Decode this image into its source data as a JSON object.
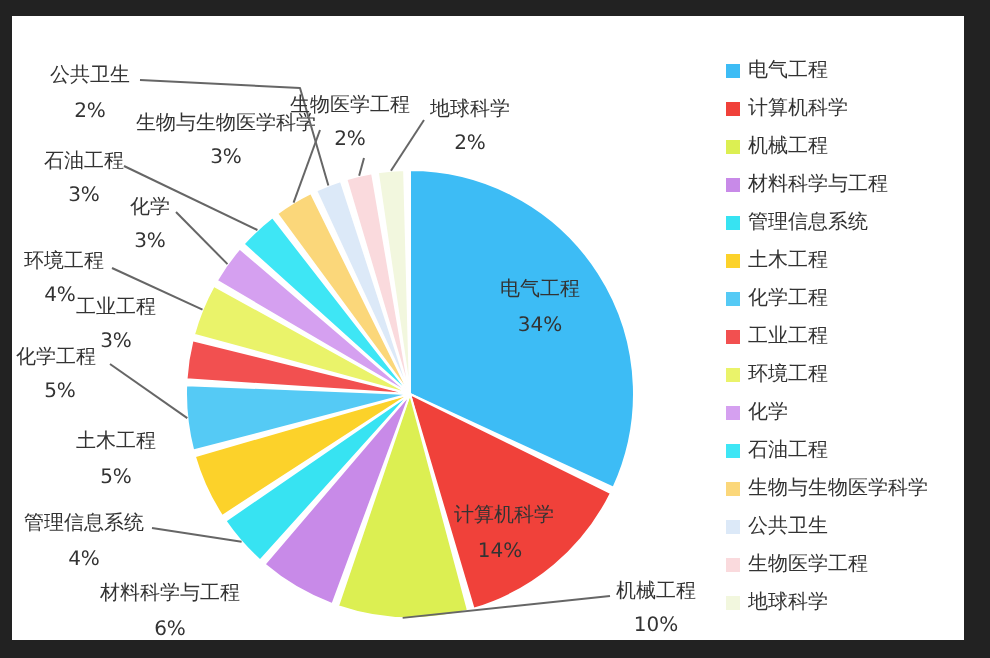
{
  "chart_data": {
    "type": "pie",
    "categories": [
      "电气工程",
      "计算机科学",
      "机械工程",
      "材料科学与工程",
      "管理信息系统",
      "土木工程",
      "化学工程",
      "工业工程",
      "环境工程",
      "化学",
      "石油工程",
      "生物与生物医学科学",
      "公共卫生",
      "生物医学工程",
      "地球科学"
    ],
    "values": [
      34,
      14,
      10,
      6,
      4,
      5,
      5,
      3,
      4,
      3,
      3,
      3,
      2,
      2,
      2
    ],
    "value_labels": [
      "34%",
      "14%",
      "10%",
      "6%",
      "4%",
      "5%",
      "5%",
      "3%",
      "4%",
      "3%",
      "3%",
      "3%",
      "2%",
      "2%",
      "2%"
    ],
    "colors": [
      "#3dbcf5",
      "#f0413a",
      "#dcef52",
      "#c88ae8",
      "#37e3f2",
      "#fcd22a",
      "#55caf5",
      "#f25050",
      "#eaf36a",
      "#d5a0f0",
      "#3ee6f5",
      "#fbd77a",
      "#dce9f8",
      "#fadadd",
      "#f2f7de"
    ],
    "legend": "right"
  }
}
